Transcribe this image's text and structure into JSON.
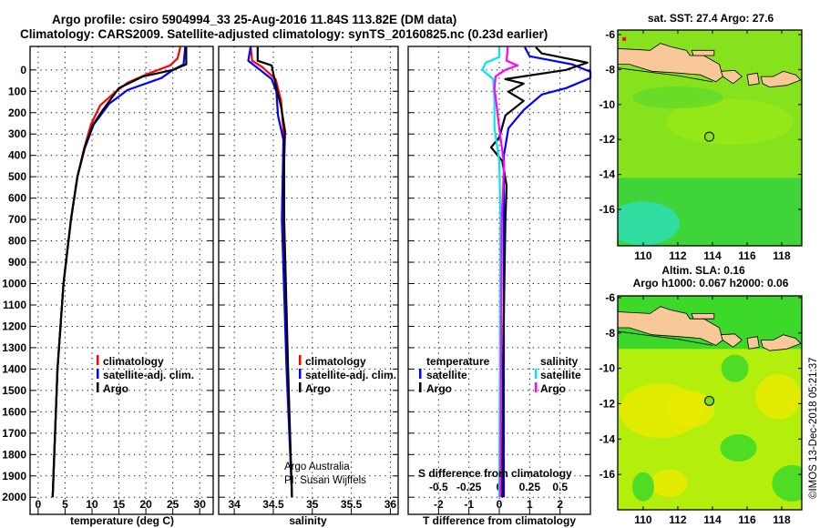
{
  "header": {
    "title_line1": "Argo profile: csiro 5904994_33 25-Aug-2016 11.84S 113.82E (DM data)",
    "title_line2": "Climatology: CARS2009. Satellite-adjusted climatology: synTS_20160825.nc (0.23d earlier)"
  },
  "colors": {
    "climatology": "#ff0000",
    "satellite_adj": "#0000ff",
    "argo": "#000000",
    "s_satellite": "#00e8e8",
    "s_argo": "#ff00ff",
    "land": "#f8c898"
  },
  "chart_data": [
    {
      "type": "line",
      "name": "temperature",
      "xlabel": "temperature (deg C)",
      "ylabel": "",
      "xlim": [
        -1.5,
        32.5
      ],
      "ylim": [
        2080,
        -110
      ],
      "xticks": [
        "0",
        "5",
        "10",
        "15",
        "20",
        "25",
        "30"
      ],
      "xtick_values": [
        0,
        5,
        10,
        15,
        20,
        25,
        30
      ],
      "yticks": [
        "0",
        "100",
        "200",
        "300",
        "400",
        "500",
        "600",
        "700",
        "800",
        "900",
        "1000",
        "1100",
        "1200",
        "1300",
        "1400",
        "1500",
        "1600",
        "1700",
        "1800",
        "1900",
        "2000"
      ],
      "grid": true,
      "legend": [
        "climatology",
        "satellite-adj. clim.",
        "Argo"
      ],
      "legend_placement": "lower-center",
      "series": [
        {
          "name": "climatology",
          "color": "#ff0000",
          "depth": [
            -107,
            -55,
            -21,
            17,
            60,
            102,
            166,
            256,
            371,
            499,
            700,
            1000,
            1400,
            2000
          ],
          "values": [
            26.4,
            25.9,
            24.5,
            20.5,
            16.6,
            14.4,
            11.5,
            9.8,
            8.5,
            7.3,
            6.1,
            4.7,
            3.6,
            2.7
          ]
        },
        {
          "name": "satellite-adj. clim.",
          "color": "#0000ff",
          "depth": [
            -107,
            -26,
            0,
            38,
            94,
            158,
            256,
            371,
            499,
            700,
            1000,
            1400,
            2000
          ],
          "values": [
            27.3,
            27.0,
            25.0,
            22.9,
            16.6,
            13.2,
            10.3,
            8.6,
            7.3,
            6.1,
            4.7,
            3.6,
            2.7
          ]
        },
        {
          "name": "Argo",
          "color": "#000000",
          "depth": [
            -107,
            -26,
            0,
            30,
            85,
            188,
            256,
            358,
            499,
            700,
            1000,
            1400,
            2000
          ],
          "values": [
            27.5,
            27.5,
            25.0,
            19.5,
            15.0,
            12.0,
            10.2,
            8.7,
            7.3,
            6.1,
            4.7,
            3.6,
            2.7
          ]
        }
      ]
    },
    {
      "type": "line",
      "name": "salinity",
      "xlabel": "salinity",
      "xlim": [
        33.8,
        36.1
      ],
      "ylim": [
        2080,
        -110
      ],
      "xticks": [
        "34",
        "34.5",
        "35",
        "35.5",
        "36"
      ],
      "xtick_values": [
        34,
        34.5,
        35,
        35.5,
        36
      ],
      "grid": true,
      "legend": [
        "climatology",
        "satellite-adj. clim.",
        "Argo"
      ],
      "legend_placement": "lower-center",
      "annotation": [
        "Argo Australia",
        "PI: Susan Wijffels"
      ],
      "series": [
        {
          "name": "climatology",
          "color": "#ff0000",
          "depth": [
            -107,
            -43,
            -13,
            43,
            145,
            286,
            700,
            1400,
            2000
          ],
          "values": [
            34.21,
            34.23,
            34.36,
            34.53,
            34.6,
            34.63,
            34.62,
            34.68,
            34.74
          ]
        },
        {
          "name": "satellite-adj. clim.",
          "color": "#0000ff",
          "depth": [
            -107,
            -43,
            0,
            43,
            102,
            213,
            328,
            700,
            1400,
            2000
          ],
          "values": [
            34.21,
            34.18,
            34.33,
            34.48,
            34.54,
            34.56,
            34.63,
            34.61,
            34.67,
            34.74
          ]
        },
        {
          "name": "Argo",
          "color": "#000000",
          "depth": [
            -107,
            -43,
            -21,
            17,
            85,
            171,
            286,
            426,
            700,
            1400,
            2000
          ],
          "values": [
            34.3,
            34.3,
            34.48,
            34.5,
            34.54,
            34.6,
            34.65,
            34.64,
            34.64,
            34.69,
            34.74
          ]
        }
      ]
    },
    {
      "type": "line",
      "name": "difference",
      "xlabel": "T difference from climatology",
      "x2label": "S difference from climatology",
      "xlim": [
        -3,
        3
      ],
      "ylim": [
        2080,
        -110
      ],
      "xticks": [
        "-2",
        "-1",
        "0",
        "1",
        "2"
      ],
      "xtick_values": [
        -2,
        -1,
        0,
        1,
        2
      ],
      "x2ticks": [
        "-0.5",
        "-0.25",
        "0",
        "0.25",
        "0.5"
      ],
      "x2tick_values": [
        -0.5,
        -0.25,
        0,
        0.25,
        0.5
      ],
      "grid": true,
      "legend_temperature_title": "temperature",
      "legend_salinity_title": "salinity",
      "legend": [
        "satellite",
        "Argo",
        "satellite",
        "Argo"
      ],
      "legend_placement": "lower-center",
      "series": [
        {
          "name": "T satellite",
          "axis": "T",
          "color": "#0000ff",
          "depth": [
            -107,
            -64,
            -26,
            9,
            38,
            85,
            115,
            188,
            273,
            401,
            700,
            2000
          ],
          "values": [
            0.84,
            1.0,
            2.4,
            3.0,
            3.0,
            2.2,
            1.4,
            0.8,
            0.3,
            0.15,
            0.15,
            0.15
          ]
        },
        {
          "name": "T Argo",
          "axis": "T",
          "color": "#000000",
          "depth": [
            -107,
            -77,
            -34,
            0,
            43,
            64,
            102,
            145,
            213,
            316,
            362,
            426,
            541,
            700,
            1400,
            2000
          ],
          "values": [
            1.2,
            1.4,
            2.9,
            2.2,
            0.2,
            0.8,
            0.3,
            0.8,
            0.2,
            0.0,
            -0.27,
            0.1,
            0.24,
            0.2,
            0.12,
            0.1
          ]
        },
        {
          "name": "S satellite",
          "axis": "S",
          "color": "#00e8e8",
          "depth": [
            -107,
            -60,
            -34,
            0,
            43,
            145,
            273,
            426,
            700,
            2000
          ],
          "values": [
            0.0,
            0.0,
            -0.11,
            -0.14,
            -0.05,
            -0.04,
            -0.04,
            0.0,
            0.01,
            0.0
          ]
        },
        {
          "name": "S Argo",
          "axis": "S",
          "color": "#ff00ff",
          "depth": [
            -107,
            -43,
            -21,
            0,
            30,
            85,
            200,
            273,
            443,
            700,
            2000
          ],
          "values": [
            0.07,
            0.06,
            0.15,
            0.05,
            -0.03,
            -0.04,
            -0.015,
            0.0,
            0.04,
            0.02,
            0.01
          ]
        }
      ]
    }
  ],
  "maps": {
    "sst": {
      "title": "sat. SST: 27.4 Argo: 27.6",
      "lat_ticks": [
        "-6",
        "-8",
        "-10",
        "-12",
        "-14",
        "-16"
      ],
      "lon_ticks": [
        "110",
        "112",
        "114",
        "116",
        "118"
      ]
    },
    "sla": {
      "title1": "Altim. SLA: 0.16",
      "title2": "Argo h1000: 0.067 h2000: 0.06",
      "lat_ticks": [
        "-6",
        "-8",
        "-10",
        "-12",
        "-14",
        "-16"
      ],
      "lon_ticks": [
        "110",
        "112",
        "114",
        "116",
        "118"
      ]
    },
    "float_position": {
      "lat": -11.84,
      "lon": 113.82
    }
  },
  "credit": "©IMOS 13-Dec-2018 05:21:37"
}
